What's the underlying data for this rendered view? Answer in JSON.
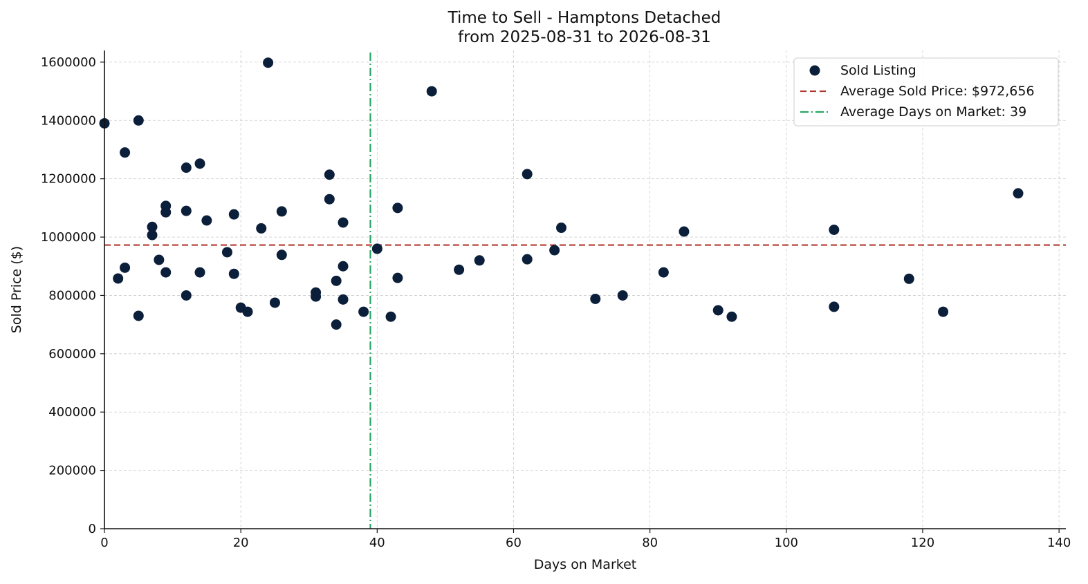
{
  "chart_data": {
    "type": "scatter",
    "title": "Time to Sell - Hamptons Detached",
    "subtitle": "from 2025-08-31 to 2026-08-31",
    "xlabel": "Days on Market",
    "ylabel": "Sold Price ($)",
    "xlim": [
      0,
      141
    ],
    "ylim": [
      0,
      1640000
    ],
    "xticks": [
      0,
      20,
      40,
      60,
      80,
      100,
      120,
      140
    ],
    "yticks": [
      0,
      200000,
      400000,
      600000,
      800000,
      1000000,
      1200000,
      1400000,
      1600000
    ],
    "grid": true,
    "legend_position": "top-right",
    "series": [
      {
        "name": "Sold Listing",
        "color": "#0b1f3a",
        "points": [
          [
            0,
            1390000
          ],
          [
            2,
            858000
          ],
          [
            3,
            1290000
          ],
          [
            3,
            895000
          ],
          [
            5,
            1400000
          ],
          [
            5,
            730000
          ],
          [
            7,
            1035000
          ],
          [
            7,
            1007000
          ],
          [
            8,
            922000
          ],
          [
            9,
            1107000
          ],
          [
            9,
            1085000
          ],
          [
            9,
            879000
          ],
          [
            12,
            1238000
          ],
          [
            12,
            1090000
          ],
          [
            12,
            800000
          ],
          [
            14,
            1252000
          ],
          [
            14,
            879000
          ],
          [
            15,
            1057000
          ],
          [
            18,
            948000
          ],
          [
            19,
            1078000
          ],
          [
            19,
            874000
          ],
          [
            20,
            758000
          ],
          [
            21,
            744000
          ],
          [
            23,
            1030000
          ],
          [
            24,
            1598000
          ],
          [
            25,
            775000
          ],
          [
            26,
            1088000
          ],
          [
            26,
            939000
          ],
          [
            31,
            810000
          ],
          [
            31,
            796000
          ],
          [
            33,
            1214000
          ],
          [
            33,
            1130000
          ],
          [
            34,
            850000
          ],
          [
            34,
            700000
          ],
          [
            35,
            1050000
          ],
          [
            35,
            900000
          ],
          [
            35,
            786000
          ],
          [
            38,
            744000
          ],
          [
            40,
            960000
          ],
          [
            42,
            727000
          ],
          [
            43,
            1100000
          ],
          [
            43,
            860000
          ],
          [
            48,
            1500000
          ],
          [
            52,
            888000
          ],
          [
            55,
            920000
          ],
          [
            62,
            1216000
          ],
          [
            62,
            924000
          ],
          [
            66,
            955000
          ],
          [
            67,
            1032000
          ],
          [
            72,
            788000
          ],
          [
            76,
            800000
          ],
          [
            82,
            879000
          ],
          [
            85,
            1019000
          ],
          [
            90,
            749000
          ],
          [
            92,
            727000
          ],
          [
            107,
            1025000
          ],
          [
            107,
            761000
          ],
          [
            118,
            857000
          ],
          [
            123,
            744000
          ],
          [
            134,
            1150000
          ]
        ]
      }
    ],
    "reference_lines": {
      "avg_price": {
        "label": "Average Sold Price: $972,656",
        "value": 972656,
        "color": "#b03a2e",
        "style": "dashed"
      },
      "avg_days": {
        "label": "Average Days on Market: 39",
        "value": 39,
        "color": "#27a463",
        "style": "dashdot"
      }
    }
  }
}
